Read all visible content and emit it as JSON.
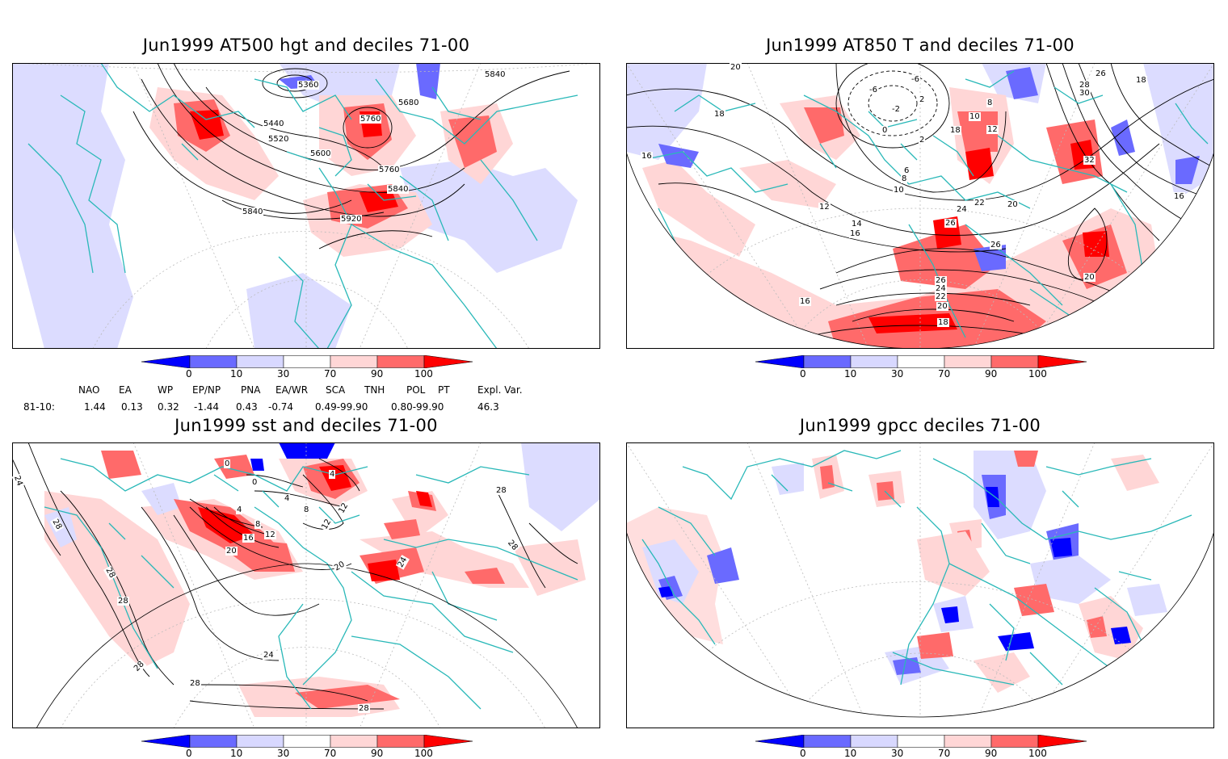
{
  "panels": {
    "p1": {
      "title": "Jun1999 AT500 hgt and deciles 71-00",
      "contour_labels": [
        "5360",
        "5840",
        "5680",
        "5440",
        "5760",
        "5520",
        "5600",
        "5760",
        "5840",
        "5840",
        "5920"
      ]
    },
    "p2": {
      "title": "Jun1999 AT850 T and deciles 71-00",
      "contour_labels": [
        "20",
        "18",
        "-6",
        "-6",
        "-2",
        "2",
        "0",
        "2",
        "8",
        "10",
        "12",
        "6",
        "8",
        "10",
        "18",
        "16",
        "12",
        "14",
        "16",
        "22",
        "24",
        "20",
        "26",
        "26",
        "32",
        "18",
        "16",
        "26",
        "24",
        "22",
        "20",
        "20",
        "18",
        "16",
        "28",
        "30",
        "26"
      ]
    },
    "p3": {
      "title": "Jun1999 sst and deciles 71-00",
      "contour_labels": [
        "24",
        "28",
        "28",
        "28",
        "0",
        "0",
        "4",
        "4",
        "8",
        "12",
        "4",
        "8",
        "16",
        "12",
        "20",
        "12",
        "20",
        "24",
        "28",
        "28",
        "24",
        "28",
        "28",
        "28"
      ]
    },
    "p4": {
      "title": "Jun1999 gpcc deciles 71-00",
      "contour_labels": []
    }
  },
  "colorbar": {
    "labels": [
      "0",
      "10",
      "30",
      "70",
      "90",
      "100"
    ],
    "colors": [
      "#0000ff",
      "#6a6aff",
      "#d8d8ff",
      "#ffffff",
      "#ffd6d6",
      "#ff6a6a",
      "#ff0000"
    ]
  },
  "indices": {
    "headers": [
      "NAO",
      "EA",
      "WP",
      "EP/NP",
      "PNA",
      "EA/WR",
      "SCA",
      "TNH",
      "POL",
      "PT",
      "Expl. Var."
    ],
    "row_label": "81-10:",
    "values": [
      "1.44",
      "0.13",
      "0.32",
      "-1.44",
      "0.43",
      "-0.74",
      "0.49-99.90",
      "0.80-99.90",
      "46.3"
    ]
  }
}
